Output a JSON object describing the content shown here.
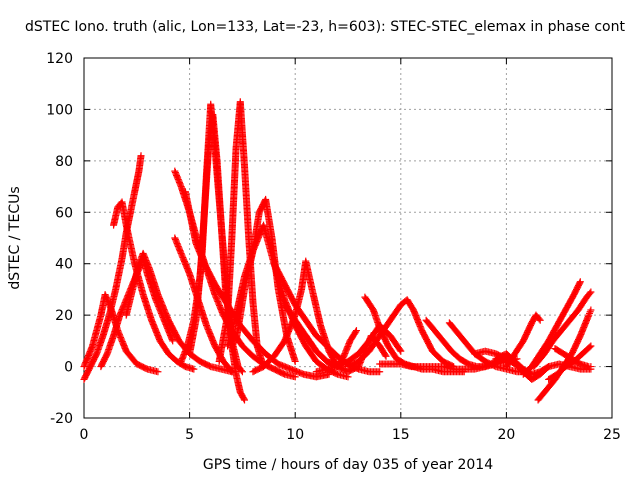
{
  "chart_data": {
    "type": "scatter",
    "title": "dSTEC Iono. truth (alic, Lon=133, Lat=-23, h=603): STEC-STEC_elemax in phase cont",
    "xlabel": "GPS time / hours of day 035 of year 2014",
    "ylabel": "dSTEC  / TECUs",
    "xlim": [
      0,
      25
    ],
    "ylim": [
      -20,
      120
    ],
    "xticks": [
      0,
      5,
      10,
      15,
      20,
      25
    ],
    "yticks": [
      -20,
      0,
      20,
      40,
      60,
      80,
      100,
      120
    ],
    "grid": true,
    "marker": "plus",
    "series_color": "#ff0000",
    "series": [
      {
        "x": [
          0.0,
          0.3,
          0.6,
          0.9,
          1.2,
          1.5,
          1.8,
          2.0,
          2.2,
          2.4,
          2.6,
          2.7
        ],
        "y": [
          -5,
          0,
          5,
          12,
          20,
          30,
          42,
          52,
          60,
          68,
          76,
          82
        ]
      },
      {
        "x": [
          1.4,
          1.6,
          1.8,
          2.0,
          2.4,
          2.8,
          3.2,
          3.6,
          4.0,
          4.4,
          4.8,
          5.2
        ],
        "y": [
          55,
          62,
          64,
          55,
          40,
          28,
          18,
          10,
          5,
          2,
          0,
          -1
        ]
      },
      {
        "x": [
          0.0,
          0.4,
          0.8,
          1.0,
          1.3,
          1.6,
          2.0,
          2.5,
          3.0,
          3.5
        ],
        "y": [
          0,
          8,
          20,
          28,
          22,
          14,
          6,
          1,
          -1,
          -2
        ]
      },
      {
        "x": [
          0.8,
          1.1,
          1.4,
          1.7,
          2.0,
          2.3,
          2.6,
          2.8,
          3.0,
          3.4,
          3.8,
          4.2
        ],
        "y": [
          0,
          5,
          12,
          20,
          26,
          32,
          38,
          42,
          36,
          26,
          18,
          10
        ]
      },
      {
        "x": [
          2.0,
          2.3,
          2.6,
          2.8,
          3.1,
          3.5,
          4.0,
          4.5,
          5.0,
          5.5,
          6.0,
          6.5,
          7.0
        ],
        "y": [
          20,
          30,
          40,
          44,
          38,
          28,
          18,
          10,
          5,
          2,
          0,
          -1,
          -2
        ]
      },
      {
        "x": [
          4.3,
          4.6,
          5.0,
          5.4,
          5.8,
          6.2,
          6.6,
          7.0,
          7.5,
          8.0,
          8.5,
          9.0,
          9.5,
          10.0
        ],
        "y": [
          76,
          70,
          60,
          48,
          38,
          28,
          20,
          14,
          8,
          4,
          1,
          -1,
          -3,
          -4
        ]
      },
      {
        "x": [
          4.6,
          4.9,
          5.2,
          5.5,
          5.7,
          5.9,
          6.1,
          6.3,
          6.5,
          6.7,
          7.0,
          7.3,
          7.5
        ],
        "y": [
          2,
          8,
          18,
          35,
          60,
          85,
          98,
          80,
          55,
          30,
          10,
          0,
          -2
        ]
      },
      {
        "x": [
          5.0,
          5.3,
          5.6,
          5.8,
          6.0,
          6.2,
          6.5,
          6.8,
          7.0,
          7.2,
          7.4,
          7.6
        ],
        "y": [
          5,
          18,
          45,
          75,
          102,
          85,
          55,
          25,
          8,
          -3,
          -10,
          -13
        ]
      },
      {
        "x": [
          4.3,
          4.6,
          5.0,
          5.4,
          5.8,
          6.2,
          6.6,
          7.0
        ],
        "y": [
          50,
          44,
          36,
          26,
          16,
          8,
          2,
          -2
        ]
      },
      {
        "x": [
          4.8,
          5.0,
          5.3,
          5.7,
          6.2,
          6.8,
          7.4,
          8.0,
          8.6,
          9.2,
          9.8,
          10.4,
          11.0,
          11.6
        ],
        "y": [
          68,
          60,
          48,
          40,
          32,
          24,
          16,
          10,
          5,
          1,
          -1,
          -3,
          -4,
          -3
        ]
      },
      {
        "x": [
          6.4,
          6.8,
          7.0,
          7.2,
          7.4,
          7.6,
          7.8,
          8.0,
          8.2,
          8.5
        ],
        "y": [
          2,
          20,
          50,
          85,
          103,
          78,
          50,
          25,
          8,
          0
        ]
      },
      {
        "x": [
          6.8,
          7.2,
          7.6,
          8.0,
          8.3,
          8.6,
          8.9,
          9.2,
          9.6,
          10.0
        ],
        "y": [
          8,
          20,
          35,
          45,
          60,
          65,
          50,
          30,
          12,
          2
        ]
      },
      {
        "x": [
          7.2,
          7.6,
          8.0,
          8.5,
          9.0,
          9.5,
          10.0,
          10.5,
          11.0,
          11.5,
          12.0,
          12.5
        ],
        "y": [
          10,
          30,
          45,
          55,
          40,
          26,
          16,
          8,
          2,
          -1,
          -3,
          -4
        ]
      },
      {
        "x": [
          8.0,
          8.5,
          9.0,
          9.5,
          10.0,
          10.3,
          10.5,
          10.8,
          11.2,
          11.6,
          12.0
        ],
        "y": [
          -2,
          0,
          4,
          10,
          20,
          30,
          41,
          30,
          16,
          6,
          0
        ]
      },
      {
        "x": [
          9.0,
          9.5,
          10.0,
          10.5,
          11.0,
          11.5,
          12.0,
          12.5,
          13.0,
          13.5,
          14.0
        ],
        "y": [
          40,
          32,
          24,
          18,
          12,
          8,
          4,
          1,
          -1,
          -2,
          -2
        ]
      },
      {
        "x": [
          9.5,
          10.0,
          10.5,
          11.0,
          11.5,
          12.0,
          12.3,
          12.6,
          12.9
        ],
        "y": [
          24,
          18,
          12,
          6,
          2,
          0,
          4,
          10,
          14
        ]
      },
      {
        "x": [
          10.5,
          11.0,
          11.5,
          12.0,
          12.5,
          13.0,
          13.3,
          13.6,
          14.0,
          14.3
        ],
        "y": [
          12,
          6,
          2,
          0,
          -2,
          0,
          6,
          12,
          8,
          4
        ]
      },
      {
        "x": [
          11.0,
          11.5,
          12.0,
          12.5,
          13.0,
          13.5,
          14.0,
          14.5,
          15.0
        ],
        "y": [
          -2,
          -1,
          0,
          2,
          5,
          10,
          16,
          12,
          6
        ]
      },
      {
        "x": [
          13.3,
          13.7,
          14.0,
          14.4,
          14.8,
          15.2,
          15.6,
          16.0,
          16.5,
          17.0,
          17.5,
          18.0
        ],
        "y": [
          27,
          22,
          15,
          8,
          3,
          1,
          0,
          -1,
          -1,
          -2,
          -2,
          -2
        ]
      },
      {
        "x": [
          12.5,
          13.0,
          13.5,
          14.0,
          14.5,
          15.0,
          15.3,
          15.6,
          16.0,
          16.5,
          17.0,
          17.5
        ],
        "y": [
          0,
          2,
          6,
          12,
          18,
          24,
          26,
          22,
          14,
          6,
          2,
          0
        ]
      },
      {
        "x": [
          14.0,
          14.5,
          15.0,
          15.5,
          16.0,
          16.5,
          17.0,
          17.5,
          18.0,
          18.5,
          19.0,
          19.5,
          20.0
        ],
        "y": [
          1,
          1,
          1,
          0,
          0,
          0,
          0,
          -1,
          -1,
          -1,
          0,
          2,
          4
        ]
      },
      {
        "x": [
          16.2,
          16.6,
          17.0,
          17.4,
          17.8,
          18.2,
          18.6,
          19.0,
          19.5,
          20.0,
          20.5
        ],
        "y": [
          18,
          14,
          10,
          6,
          3,
          1,
          0,
          0,
          1,
          2,
          3
        ]
      },
      {
        "x": [
          17.3,
          17.7,
          18.1,
          18.5,
          19.0,
          19.5,
          20.0,
          20.5,
          21.0
        ],
        "y": [
          17,
          13,
          9,
          5,
          2,
          0,
          -1,
          -2,
          -2
        ]
      },
      {
        "x": [
          18.5,
          19.0,
          19.5,
          20.0,
          20.4,
          20.8,
          21.2,
          21.6,
          22.0
        ],
        "y": [
          5,
          6,
          5,
          3,
          1,
          -2,
          -5,
          -3,
          0
        ]
      },
      {
        "x": [
          19.5,
          20.0,
          20.4,
          20.8,
          21.2,
          21.6,
          22.0,
          22.5,
          23.0,
          23.5,
          24.0
        ],
        "y": [
          3,
          5,
          2,
          -1,
          -3,
          -2,
          0,
          1,
          0,
          -1,
          -1
        ]
      },
      {
        "x": [
          20.0,
          20.4,
          20.8,
          21.2,
          21.4,
          21.6
        ],
        "y": [
          0,
          5,
          10,
          17,
          20,
          18
        ]
      },
      {
        "x": [
          20.8,
          21.2,
          21.6,
          22.0,
          22.4,
          22.8,
          23.2,
          23.5
        ],
        "y": [
          -3,
          0,
          5,
          10,
          16,
          22,
          28,
          33
        ]
      },
      {
        "x": [
          21.3,
          21.8,
          22.2,
          22.6,
          23.0,
          23.4,
          23.8,
          24.0
        ],
        "y": [
          0,
          5,
          10,
          14,
          18,
          22,
          27,
          29
        ]
      },
      {
        "x": [
          21.5,
          21.9,
          22.3,
          22.7,
          23.1,
          23.5,
          23.9,
          24.0
        ],
        "y": [
          -13,
          -9,
          -5,
          0,
          5,
          12,
          20,
          22
        ]
      },
      {
        "x": [
          22.0,
          22.4,
          22.8,
          23.2,
          23.6,
          24.0
        ],
        "y": [
          -5,
          -3,
          0,
          2,
          5,
          8
        ]
      },
      {
        "x": [
          22.3,
          22.7,
          23.1,
          23.5,
          23.9,
          24.0
        ],
        "y": [
          7,
          5,
          3,
          1,
          0,
          0
        ]
      }
    ]
  }
}
